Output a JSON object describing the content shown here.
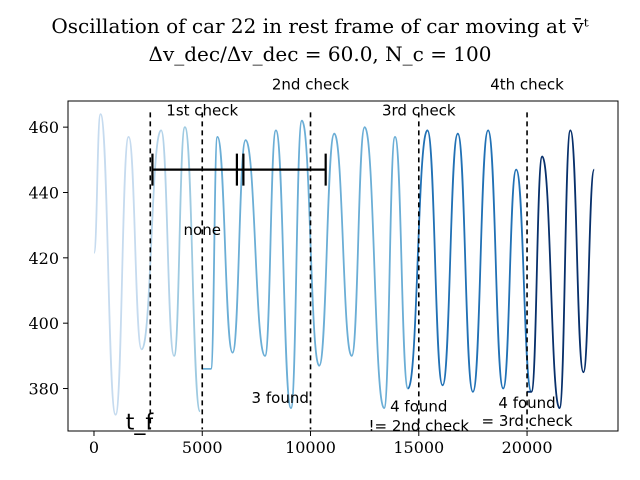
{
  "chart_data": {
    "type": "line",
    "title_line1": "Oscillation of car 22 in rest frame of car moving at v̄ᵗ",
    "title_line2": "Δv_dec/Δv_dec = 60.0, N_c = 100",
    "xlabel": "",
    "ylabel": "",
    "xlim": [
      -1200,
      24200
    ],
    "ylim": [
      367,
      468
    ],
    "xticks": [
      0,
      5000,
      10000,
      15000,
      20000
    ],
    "yticks": [
      380,
      400,
      420,
      440,
      460
    ],
    "series": [
      {
        "color": "#c6dbef",
        "x_start": 0,
        "x_end": 3000,
        "peaks": [
          [
            300,
            464
          ],
          [
            1600,
            457
          ]
        ],
        "troughs": [
          [
            1000,
            372
          ],
          [
            2200,
            392
          ]
        ]
      },
      {
        "color": "#b4d3e9",
        "x_start": 3000,
        "x_end": 4000,
        "peaks": [
          [
            3100,
            459
          ]
        ],
        "troughs": [
          [
            2200,
            392
          ],
          [
            3700,
            390
          ]
        ]
      },
      {
        "color": "#9ecae1",
        "x_start": 4000,
        "x_end": 5100,
        "peaks": [
          [
            4200,
            460
          ]
        ],
        "troughs": [
          [
            3700,
            390
          ],
          [
            4900,
            373
          ]
        ]
      },
      {
        "color": "#6baed6",
        "x_start": 5000,
        "x_end": 15000,
        "peaks": [
          [
            5700,
            457
          ],
          [
            7000,
            456
          ],
          [
            8400,
            459
          ],
          [
            9600,
            462
          ],
          [
            11100,
            458
          ],
          [
            12500,
            460
          ],
          [
            13900,
            457
          ]
        ],
        "troughs": [
          [
            5400,
            386
          ],
          [
            6400,
            391
          ],
          [
            7900,
            390
          ],
          [
            9100,
            374
          ],
          [
            10400,
            387
          ],
          [
            11900,
            390
          ],
          [
            13400,
            374
          ],
          [
            14500,
            380
          ]
        ]
      },
      {
        "color": "#2171b5",
        "x_start": 15000,
        "x_end": 20000,
        "peaks": [
          [
            15400,
            459
          ],
          [
            16800,
            458
          ],
          [
            18200,
            459
          ],
          [
            19500,
            447
          ]
        ],
        "troughs": [
          [
            14500,
            380
          ],
          [
            16100,
            381
          ],
          [
            17500,
            379
          ],
          [
            18900,
            380
          ],
          [
            20200,
            379
          ]
        ]
      },
      {
        "color": "#08306b",
        "x_start": 20000,
        "x_end": 23100,
        "peaks": [
          [
            20700,
            451
          ],
          [
            22000,
            459
          ],
          [
            23100,
            447
          ]
        ],
        "troughs": [
          [
            20200,
            379
          ],
          [
            21500,
            374
          ],
          [
            22600,
            385
          ]
        ]
      }
    ],
    "vlines": [
      2600,
      5000,
      10000,
      15000,
      20000
    ],
    "labels": [
      {
        "text": "1st check",
        "x": 5000,
        "y": 463.5
      },
      {
        "text": "2nd check",
        "x": 10000,
        "y": 471.5
      },
      {
        "text": "3rd check",
        "x": 15000,
        "y": 463.5
      },
      {
        "text": "4th check",
        "x": 20000,
        "y": 471.5
      },
      {
        "text": "none",
        "x": 5000,
        "y": 427
      },
      {
        "text": "3 found",
        "x": 8600,
        "y": 375.5
      },
      {
        "text": "4 found",
        "x": 15000,
        "y": 373
      },
      {
        "text": "!= 2nd check",
        "x": 15000,
        "y": 367
      },
      {
        "text": "4 found",
        "x": 20000,
        "y": 374
      },
      {
        "text": "= 3rd check",
        "x": 20000,
        "y": 368.5
      },
      {
        "text": "t_f",
        "x": 2100,
        "y": 367.5
      }
    ],
    "bracket": {
      "y": 447,
      "x_start": 2700,
      "x_end": 10700,
      "ticks": [
        2700,
        6600,
        6900,
        10700
      ]
    }
  }
}
